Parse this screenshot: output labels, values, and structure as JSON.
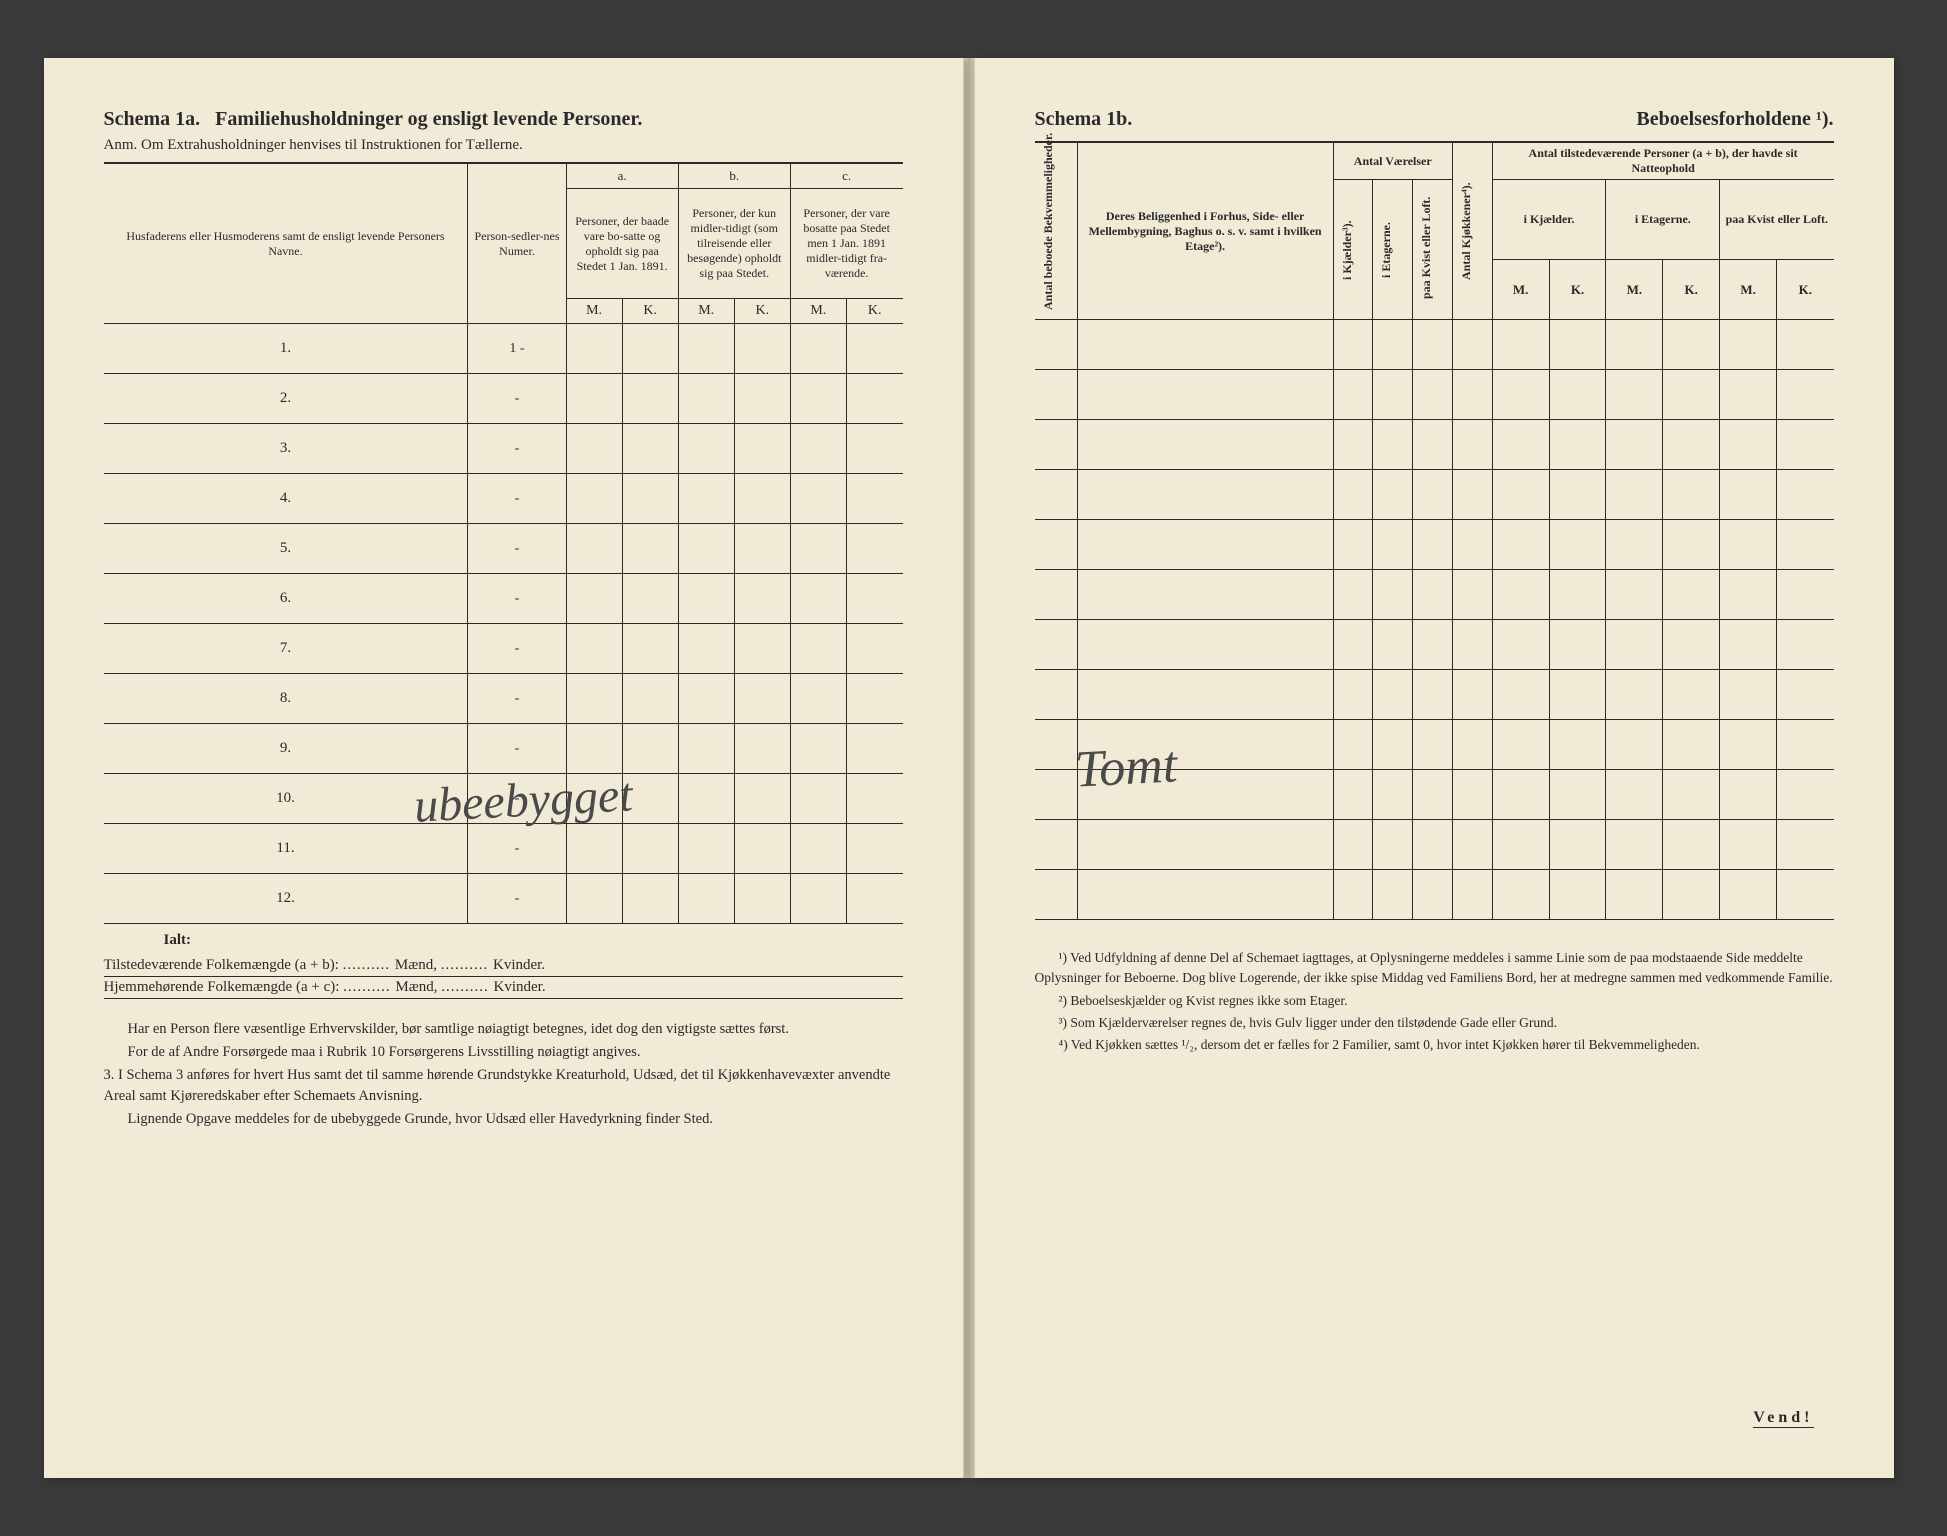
{
  "left": {
    "schema_label": "Schema 1a.",
    "schema_title": "Familiehusholdninger og ensligt levende Personer.",
    "anm": "Anm. Om Extrahusholdninger henvises til Instruktionen for Tællerne.",
    "header": {
      "col_name": "Husfaderens eller Husmoderens samt de ensligt levende Personers Navne.",
      "col_num": "Person-sedler-nes Numer.",
      "a_label": "a.",
      "a_text": "Personer, der baade vare bo-satte og opholdt sig paa Stedet 1 Jan. 1891.",
      "b_label": "b.",
      "b_text": "Personer, der kun midler-tidigt (som tilreisende eller besøgende) opholdt sig paa Stedet.",
      "c_label": "c.",
      "c_text": "Personer, der vare bosatte paa Stedet men 1 Jan. 1891 midler-tidigt fra-værende.",
      "m": "M.",
      "k": "K."
    },
    "rows": [
      "1.",
      "2.",
      "3.",
      "4.",
      "5.",
      "6.",
      "7.",
      "8.",
      "9.",
      "10.",
      "11.",
      "12."
    ],
    "row_dashes": [
      "1 -",
      "-",
      "-",
      "-",
      "-",
      "-",
      "-",
      "-",
      "-",
      "-",
      "-",
      "-"
    ],
    "ialt": "Ialt:",
    "sum1_a": "Tilstedeværende Folkemængde (a + b):",
    "sum1_b": "Mænd,",
    "sum1_c": "Kvinder.",
    "sum2_a": "Hjemmehørende Folkemængde (a + c):",
    "sum2_b": "Mænd,",
    "sum2_c": "Kvinder.",
    "para1": "Har en Person flere væsentlige Erhvervskilder, bør samtlige nøiagtigt betegnes, idet dog den vigtigste sættes først.",
    "para2": "For de af Andre Forsørgede maa i Rubrik 10 Forsørgerens Livsstilling nøiagtigt angives.",
    "para3_num": "3.",
    "para3": "I Schema 3 anføres for hvert Hus samt det til samme hørende Grundstykke Kreaturhold, Udsæd, det til Kjøkkenhavevæxter anvendte Areal samt Kjøreredskaber efter Schemaets Anvisning.",
    "para4": "Lignende Opgave meddeles for de ubebyggede Grunde, hvor Udsæd eller Havedyrkning finder Sted.",
    "handwriting": "ubeebygget"
  },
  "right": {
    "schema_label": "Schema 1b.",
    "schema_title": "Beboelsesforholdene ¹).",
    "header": {
      "col_antal_bek": "Antal beboede Bekvemmeligheder.",
      "col_belig": "Deres Beliggenhed i Forhus, Side- eller Mellembygning, Baghus o. s. v. samt i hvilken Etage²).",
      "antal_vaer": "Antal Værelser",
      "kjaelder": "i Kjælder³).",
      "etagerne": "i Etagerne.",
      "kvist": "paa Kvist eller Loft.",
      "kjokken": "Antal Kjøkkener⁴).",
      "antal_pers": "Antal tilstedeværende Personer (a + b), der havde sit Natteophold",
      "natt_kjael": "i Kjælder.",
      "natt_etag": "i Etagerne.",
      "natt_kvist": "paa Kvist eller Loft.",
      "m": "M.",
      "k": "K."
    },
    "handwriting": "Tomt",
    "fn1": "¹) Ved Udfyldning af denne Del af Schemaet iagttages, at Oplysningerne meddeles i samme Linie som de paa modstaaende Side meddelte Oplysninger for Beboerne. Dog blive Logerende, der ikke spise Middag ved Familiens Bord, her at medregne sammen med vedkommende Familie.",
    "fn2": "²) Beboelseskjælder og Kvist regnes ikke som Etager.",
    "fn3": "³) Som Kjælderværelser regnes de, hvis Gulv ligger under den tilstødende Gade eller Grund.",
    "fn4": "⁴) Ved Kjøkken sættes ¹/₂, dersom det er fælles for 2 Familier, samt 0, hvor intet Kjøkken hører til Bekvemmeligheden.",
    "vend": "Vend!"
  }
}
